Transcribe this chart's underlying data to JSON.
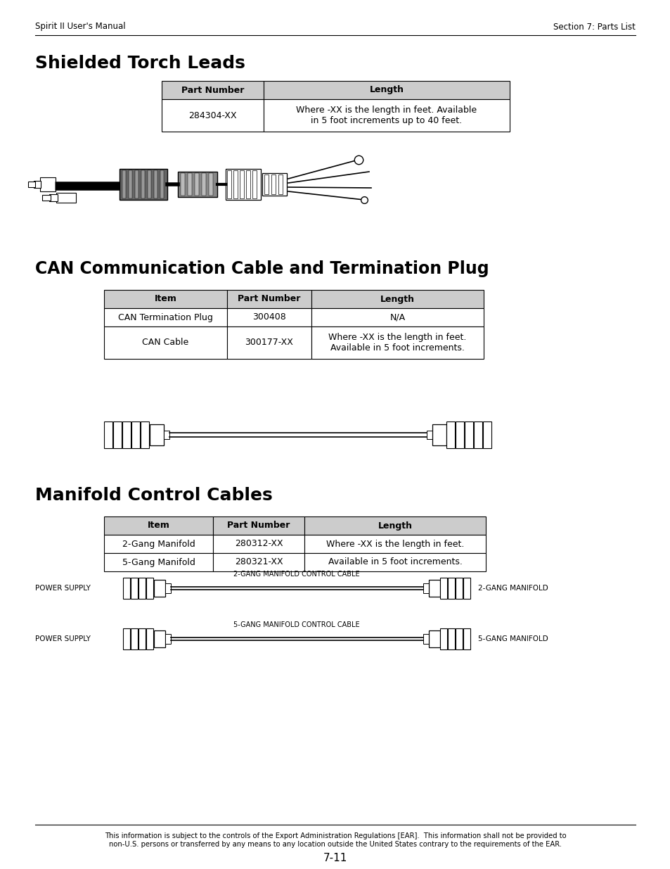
{
  "header_left": "Spirit II User's Manual",
  "header_right": "Section 7: Parts List",
  "section1_title": "Shielded Torch Leads",
  "section2_title": "CAN Communication Cable and Termination Plug",
  "section3_title": "Manifold Control Cables",
  "t1_headers": [
    "Part Number",
    "Length"
  ],
  "t1_rows": [
    [
      "284304-XX",
      "Where -XX is the length in feet. Available\nin 5 foot increments up to 40 feet."
    ]
  ],
  "t2_headers": [
    "Item",
    "Part Number",
    "Length"
  ],
  "t2_rows": [
    [
      "CAN Termination Plug",
      "300408",
      "N/A"
    ],
    [
      "CAN Cable",
      "300177-XX",
      "Where -XX is the length in feet.\nAvailable in 5 foot increments."
    ]
  ],
  "t3_headers": [
    "Item",
    "Part Number",
    "Length"
  ],
  "t3_rows": [
    [
      "2-Gang Manifold",
      "280312-XX",
      "Where -XX is the length in feet."
    ],
    [
      "5-Gang Manifold",
      "280321-XX",
      "Available in 5 foot increments."
    ]
  ],
  "footer_text": "This information is subject to the controls of the Export Administration Regulations [EAR].  This information shall not be provided to\nnon-U.S. persons or transferred by any means to any location outside the United States contrary to the requirements of the EAR.",
  "page_number": "7-11",
  "bg_color": "#ffffff",
  "table_header_bg": "#cccccc"
}
